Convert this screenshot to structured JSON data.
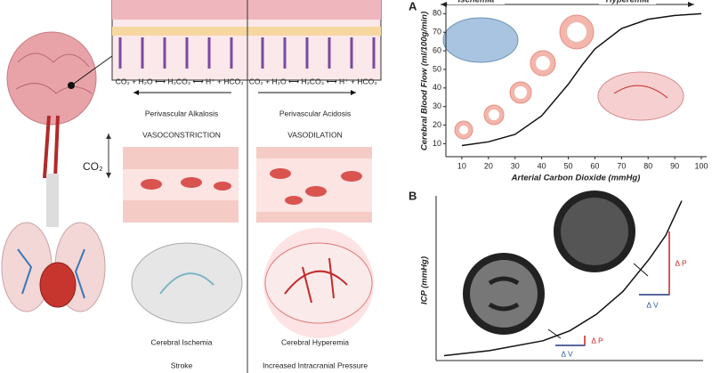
{
  "illustration": {
    "co2": "CO₂",
    "equation_left": "CO₂ + H₂O ⟷ H₂CO₃ ⟷ H⁺ + HCO₃⁻",
    "equation_right": "CO₂ + H₂O ⟷ H₂CO₃ ⟷ H⁺ + HCO₃⁻",
    "left_state": "Perivascular Alkalosis",
    "right_state": "Perivascular Acidosis",
    "left_vessel": "VASOCONSTRICTION",
    "right_vessel": "VASODILATION",
    "left_brain": "Cerebral Ischemia",
    "left_outcome": "Stroke",
    "right_brain": "Cerebral Hyperemia",
    "right_outcome": "Increased Intracranial Pressure"
  },
  "chart_data": [
    {
      "type": "line",
      "panel": "A",
      "x_label": "Arterial Carbon Dioxide (mmHg)",
      "y_label": "Cerebral Blood Flow (ml/100g/min)",
      "annotations": [
        "Ischemia",
        "Hyperemia"
      ],
      "x": [
        10,
        20,
        30,
        40,
        50,
        55,
        60,
        70,
        80,
        90,
        100
      ],
      "values": [
        9,
        11,
        15,
        25,
        42,
        52,
        61,
        72,
        77,
        79,
        80
      ],
      "color": "#111111",
      "xlim": [
        4,
        102
      ],
      "ylim": [
        3,
        84
      ],
      "xticks": [
        10,
        20,
        30,
        40,
        50,
        60,
        70,
        80,
        90,
        100
      ],
      "yticks": [
        10,
        20,
        30,
        40,
        50,
        60,
        70,
        80
      ]
    },
    {
      "type": "line",
      "panel": "B",
      "y_label": "ICP (mmHg)",
      "annotations": [
        "Δ V",
        "Δ P",
        "Δ V",
        "Δ P"
      ],
      "x": [
        0.3,
        2,
        4,
        5,
        6,
        7,
        8,
        8.6,
        9.2
      ],
      "values": [
        0.3,
        0.6,
        1.2,
        1.8,
        2.8,
        4.2,
        6.2,
        7.6,
        9.7
      ],
      "color": "#111111",
      "xlim": [
        0,
        10
      ],
      "ylim": [
        0,
        10
      ]
    }
  ]
}
